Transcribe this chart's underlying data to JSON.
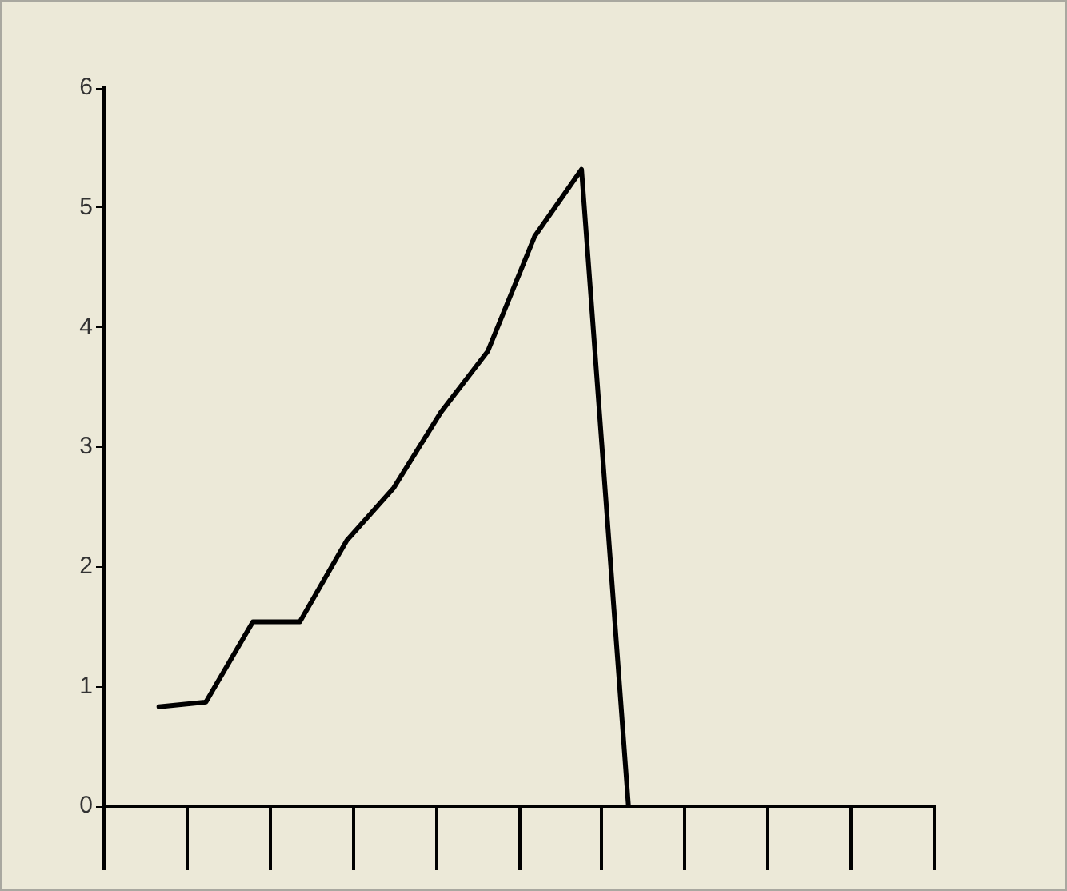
{
  "chart_data": {
    "type": "line",
    "categories": [
      null,
      null,
      null,
      null,
      null,
      null,
      null,
      null,
      null,
      null,
      null
    ],
    "series": [
      {
        "color": "#000000",
        "values": [
          0.83,
          0.87,
          1.54,
          1.54,
          2.22,
          2.66,
          3.29,
          3.8,
          4.76,
          5.32,
          0
        ]
      }
    ],
    "ylim": [
      0,
      6
    ],
    "yticks": [
      0,
      1,
      2,
      3,
      4,
      5,
      6
    ],
    "legend": false,
    "marker": "none",
    "line_style": "solid"
  }
}
